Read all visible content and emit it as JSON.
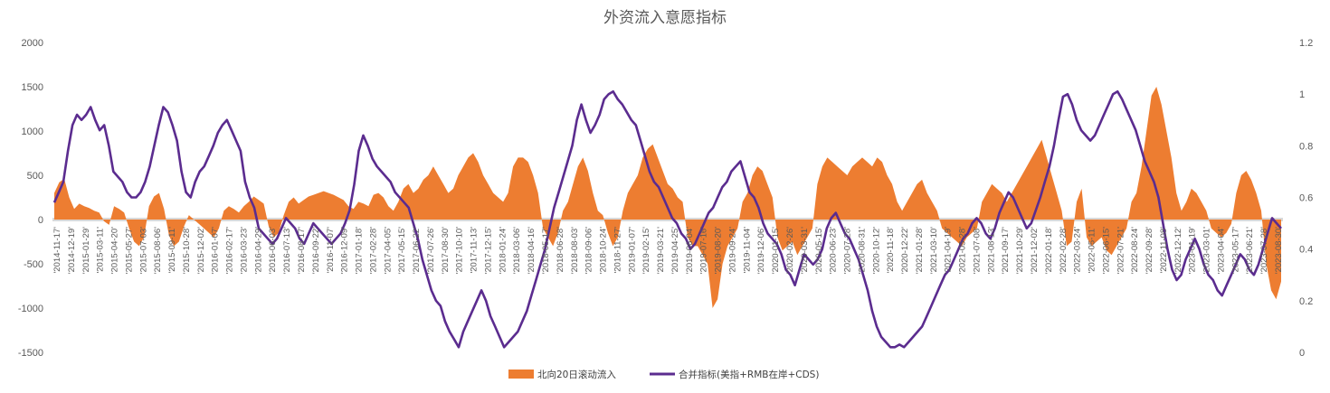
{
  "chart_data": {
    "type": "area+line",
    "title": "外资流入意愿指标",
    "y_left": {
      "ylim": [
        -1500,
        2000
      ],
      "ticks": [
        -1500,
        -1000,
        -500,
        0,
        500,
        1000,
        1500,
        2000
      ]
    },
    "y_right": {
      "ylim": [
        0,
        1.2
      ],
      "ticks": [
        "0",
        "0.2",
        "0.4",
        "0.6",
        "0.8",
        "1",
        "1.2"
      ]
    },
    "x_ticks": [
      "'2014-11-17'",
      "'2014-12-19'",
      "'2015-01-29'",
      "'2015-03-11'",
      "'2015-04-20'",
      "'2015-05-27'",
      "'2015-07-03'",
      "'2015-08-06'",
      "'2015-09-11'",
      "'2015-10-28'",
      "'2015-12-02'",
      "'2016-01-07'",
      "'2016-02-17'",
      "'2016-03-23'",
      "'2016-04-29'",
      "'2016-06-03'",
      "'2016-07-13'",
      "'2016-08-17'",
      "'2016-09-22'",
      "'2016-11-07'",
      "'2016-12-09'",
      "'2017-01-18'",
      "'2017-02-28'",
      "'2017-04-05'",
      "'2017-05-15'",
      "'2017-06-22'",
      "'2017-07-26'",
      "'2017-08-30'",
      "'2017-10-10'",
      "'2017-11-13'",
      "'2017-12-15'",
      "'2018-01-24'",
      "'2018-03-06'",
      "'2018-04-16'",
      "'2018-05-17'",
      "'2018-06-28'",
      "'2018-08-03'",
      "'2018-09-06'",
      "'2018-10-24'",
      "'2018-11-27'",
      "'2019-01-07'",
      "'2019-02-15'",
      "'2019-03-21'",
      "'2019-04-25'",
      "'2019-06-04'",
      "'2019-07-16'",
      "'2019-08-20'",
      "'2019-09-24'",
      "'2019-11-04'",
      "'2019-12-06'",
      "'2020-01-15'",
      "'2020-02-26'",
      "'2020-03-31'",
      "'2020-05-15'",
      "'2020-06-23'",
      "'2020-07-28'",
      "'2020-08-31'",
      "'2020-10-12'",
      "'2020-11-18'",
      "'2020-12-22'",
      "'2021-01-28'",
      "'2021-03-10'",
      "'2021-04-19'",
      "'2021-05-28'",
      "'2021-07-08'",
      "'2021-08-13'",
      "'2021-09-17'",
      "'2021-10-29'",
      "'2021-12-02'",
      "'2022-01-18'",
      "'2022-02-28'",
      "'2022-03-24'",
      "'2022-05-11'",
      "'2022-06-15'",
      "'2022-07-21'",
      "'2022-08-24'",
      "'2022-09-28'",
      "'2022-11-08'",
      "'2022-12-12'",
      "'2023-01-19'",
      "'2023-03-01'",
      "'2023-04-04'",
      "'2023-05-17'",
      "'2023-06-21'",
      "'2023-07-28'",
      "'2023-08-30'"
    ],
    "series": [
      {
        "name": "北向20日滚动流入",
        "type": "area",
        "axis": "left",
        "color": "#ED7D31",
        "values": [
          300,
          420,
          460,
          250,
          120,
          180,
          150,
          130,
          100,
          80,
          -20,
          -60,
          150,
          120,
          80,
          -100,
          -250,
          -300,
          -200,
          150,
          260,
          300,
          120,
          -180,
          -300,
          -250,
          -80,
          50,
          0,
          -50,
          -100,
          -150,
          -200,
          -100,
          100,
          150,
          120,
          80,
          150,
          200,
          260,
          220,
          180,
          -80,
          -200,
          -150,
          50,
          200,
          250,
          180,
          220,
          260,
          280,
          300,
          320,
          300,
          280,
          250,
          220,
          150,
          120,
          200,
          180,
          150,
          280,
          300,
          250,
          150,
          100,
          200,
          350,
          400,
          300,
          350,
          450,
          500,
          600,
          500,
          400,
          300,
          350,
          500,
          600,
          700,
          750,
          650,
          500,
          400,
          300,
          250,
          200,
          300,
          600,
          700,
          700,
          650,
          500,
          300,
          -100,
          -200,
          -300,
          -150,
          100,
          200,
          400,
          600,
          700,
          550,
          300,
          100,
          50,
          -150,
          -300,
          -200,
          100,
          300,
          400,
          500,
          700,
          800,
          850,
          700,
          550,
          400,
          350,
          250,
          200,
          -200,
          -300,
          -300,
          -400,
          -500,
          -1000,
          -900,
          -500,
          -300,
          -200,
          -100,
          200,
          300,
          500,
          600,
          550,
          400,
          250,
          -200,
          -350,
          -300,
          -250,
          -400,
          -300,
          -200,
          -100,
          400,
          600,
          700,
          650,
          600,
          550,
          500,
          600,
          650,
          700,
          650,
          600,
          700,
          650,
          500,
          400,
          200,
          100,
          200,
          300,
          400,
          450,
          300,
          200,
          100,
          -100,
          -150,
          -200,
          -250,
          -300,
          -200,
          -150,
          -100,
          200,
          300,
          400,
          350,
          300,
          200,
          300,
          400,
          500,
          600,
          700,
          800,
          900,
          700,
          500,
          300,
          100,
          -300,
          -250,
          200,
          350,
          -200,
          -300,
          -250,
          -200,
          -350,
          -400,
          -300,
          -200,
          -100,
          200,
          300,
          600,
          1000,
          1400,
          1500,
          1300,
          1000,
          700,
          300,
          100,
          200,
          350,
          300,
          200,
          100,
          -100,
          -150,
          -200,
          -150,
          -50,
          300,
          500,
          550,
          450,
          300,
          100,
          -500,
          -800,
          -900,
          -700
        ]
      },
      {
        "name": "合并指标(美指+RMB在岸+CDS)",
        "type": "line",
        "axis": "right",
        "color": "#5B2C8F",
        "values": [
          0.58,
          0.62,
          0.66,
          0.78,
          0.88,
          0.92,
          0.9,
          0.92,
          0.95,
          0.9,
          0.86,
          0.88,
          0.8,
          0.7,
          0.68,
          0.66,
          0.62,
          0.6,
          0.6,
          0.62,
          0.66,
          0.72,
          0.8,
          0.88,
          0.95,
          0.93,
          0.88,
          0.82,
          0.7,
          0.62,
          0.6,
          0.66,
          0.7,
          0.72,
          0.76,
          0.8,
          0.85,
          0.88,
          0.9,
          0.86,
          0.82,
          0.78,
          0.66,
          0.6,
          0.56,
          0.48,
          0.46,
          0.44,
          0.42,
          0.44,
          0.48,
          0.52,
          0.5,
          0.48,
          0.44,
          0.42,
          0.46,
          0.5,
          0.48,
          0.46,
          0.44,
          0.42,
          0.44,
          0.46,
          0.5,
          0.55,
          0.65,
          0.78,
          0.84,
          0.8,
          0.75,
          0.72,
          0.7,
          0.68,
          0.66,
          0.62,
          0.6,
          0.58,
          0.56,
          0.5,
          0.44,
          0.36,
          0.3,
          0.24,
          0.2,
          0.18,
          0.12,
          0.08,
          0.05,
          0.02,
          0.08,
          0.12,
          0.16,
          0.2,
          0.24,
          0.2,
          0.14,
          0.1,
          0.06,
          0.02,
          0.04,
          0.06,
          0.08,
          0.12,
          0.16,
          0.22,
          0.28,
          0.34,
          0.4,
          0.48,
          0.56,
          0.62,
          0.68,
          0.74,
          0.8,
          0.9,
          0.96,
          0.9,
          0.85,
          0.88,
          0.92,
          0.98,
          1.0,
          1.01,
          0.98,
          0.96,
          0.93,
          0.9,
          0.88,
          0.82,
          0.76,
          0.7,
          0.66,
          0.64,
          0.6,
          0.56,
          0.52,
          0.5,
          0.46,
          0.44,
          0.4,
          0.42,
          0.46,
          0.5,
          0.54,
          0.56,
          0.6,
          0.64,
          0.66,
          0.7,
          0.72,
          0.74,
          0.68,
          0.62,
          0.6,
          0.56,
          0.5,
          0.46,
          0.44,
          0.42,
          0.38,
          0.32,
          0.3,
          0.26,
          0.32,
          0.38,
          0.36,
          0.34,
          0.36,
          0.4,
          0.48,
          0.52,
          0.54,
          0.5,
          0.46,
          0.44,
          0.4,
          0.36,
          0.3,
          0.24,
          0.16,
          0.1,
          0.06,
          0.04,
          0.02,
          0.02,
          0.03,
          0.02,
          0.04,
          0.06,
          0.08,
          0.1,
          0.14,
          0.18,
          0.22,
          0.26,
          0.3,
          0.32,
          0.36,
          0.4,
          0.44,
          0.46,
          0.5,
          0.52,
          0.5,
          0.46,
          0.44,
          0.48,
          0.54,
          0.58,
          0.62,
          0.6,
          0.56,
          0.52,
          0.48,
          0.5,
          0.55,
          0.6,
          0.66,
          0.72,
          0.8,
          0.9,
          0.99,
          1.0,
          0.96,
          0.9,
          0.86,
          0.84,
          0.82,
          0.84,
          0.88,
          0.92,
          0.96,
          1.0,
          1.01,
          0.98,
          0.94,
          0.9,
          0.86,
          0.8,
          0.74,
          0.7,
          0.66,
          0.6,
          0.5,
          0.4,
          0.32,
          0.28,
          0.3,
          0.36,
          0.4,
          0.44,
          0.4,
          0.34,
          0.3,
          0.28,
          0.24,
          0.22,
          0.26,
          0.3,
          0.34,
          0.38,
          0.36,
          0.32,
          0.3,
          0.34,
          0.4,
          0.46,
          0.52,
          0.5,
          0.48
        ]
      }
    ],
    "legend": {
      "placement": "bottom-center"
    }
  }
}
